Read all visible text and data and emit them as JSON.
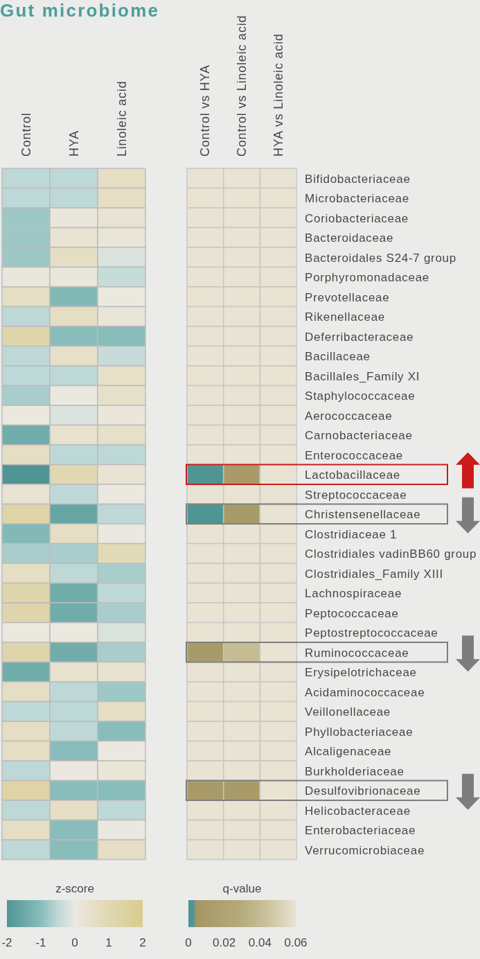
{
  "chart_data": [
    {
      "type": "heatmap",
      "title": "Gut microbiome",
      "categories": [
        "Control",
        "HYA",
        "Linoleic acid"
      ],
      "y_categories": [
        "Bifidobacteriaceae",
        "Microbacteriaceae",
        "Coriobacteriaceae",
        "Bacteroidaceae",
        "Bacteroidales S24-7 group",
        "Porphyromonadaceae",
        "Prevotellaceae",
        "Rikenellaceae",
        "Deferribacteraceae",
        "Bacillaceae",
        "Bacillales_Family XI",
        "Staphylococcaceae",
        "Aerococcaceae",
        "Carnobacteriaceae",
        "Enterococcaceae",
        "Lactobacillaceae",
        "Streptococcaceae",
        "Christensenellaceae",
        "Clostridiaceae 1",
        "Clostridiales vadinBB60 group",
        "Clostridiales_Family XIII",
        "Lachnospiraceae",
        "Peptococcaceae",
        "Peptostreptococcaceae",
        "Ruminococcaceae",
        "Erysipelotrichaceae",
        "Acidaminococcaceae",
        "Veillonellaceae",
        "Phyllobacteriaceae",
        "Alcaligenaceae",
        "Burkholderiaceae",
        "Desulfovibrionaceae",
        "Helicobacteraceae",
        "Enterobacteriaceae",
        "Verrucomicrobiaceae"
      ],
      "cells": [
        [
          -0.5,
          -0.5,
          0.6
        ],
        [
          -0.5,
          -0.5,
          0.6
        ],
        [
          -0.8,
          0.1,
          0.3
        ],
        [
          -0.8,
          0.3,
          0.2
        ],
        [
          -0.8,
          0.6,
          -0.2
        ],
        [
          0.1,
          0.1,
          -0.4
        ],
        [
          0.6,
          -1.1,
          0
        ],
        [
          -0.5,
          0.6,
          0.2
        ],
        [
          1.2,
          -1,
          -1
        ],
        [
          -0.5,
          0.5,
          -0.4
        ],
        [
          -0.5,
          -0.5,
          0.5
        ],
        [
          -0.7,
          0,
          0.5
        ],
        [
          0,
          -0.2,
          0.1
        ],
        [
          -1.4,
          0.4,
          0.5
        ],
        [
          0.6,
          -0.5,
          -0.5
        ],
        [
          -2,
          1,
          0.3
        ],
        [
          0.3,
          -0.5,
          0
        ],
        [
          1.3,
          -1.6,
          -0.5
        ],
        [
          -1.1,
          0.6,
          0
        ],
        [
          -0.7,
          -0.7,
          0.9
        ],
        [
          0.6,
          -0.5,
          -0.7
        ],
        [
          1.2,
          -1.4,
          -0.5
        ],
        [
          1.2,
          -1.4,
          -0.7
        ],
        [
          0,
          0,
          -0.2
        ],
        [
          1.2,
          -1.4,
          -0.7
        ],
        [
          -1.4,
          0.4,
          0.4
        ],
        [
          0.6,
          -0.5,
          -0.8
        ],
        [
          -0.5,
          -0.5,
          0.6
        ],
        [
          0.6,
          -0.5,
          -1
        ],
        [
          0.6,
          -1,
          0
        ],
        [
          -0.5,
          0,
          0.2
        ],
        [
          1.3,
          -1,
          -1
        ],
        [
          -0.5,
          0.6,
          -0.5
        ],
        [
          0.6,
          -1,
          0
        ],
        [
          -0.5,
          -1,
          0.6
        ]
      ],
      "clabel": "z-score",
      "clim": [
        -2,
        2
      ],
      "cticks": [
        -2,
        -1,
        0,
        1,
        2
      ],
      "tick_labels": "x"
    },
    {
      "type": "heatmap",
      "categories": [
        "Control vs HYA",
        "Control vs Linoleic acid",
        "HYA vs Linoleic acid"
      ],
      "y_categories": [
        "Bifidobacteriaceae",
        "Microbacteriaceae",
        "Coriobacteriaceae",
        "Bacteroidaceae",
        "Bacteroidales S24-7 group",
        "Porphyromonadaceae",
        "Prevotellaceae",
        "Rikenellaceae",
        "Deferribacteraceae",
        "Bacillaceae",
        "Bacillales_Family XI",
        "Staphylococcaceae",
        "Aerococcaceae",
        "Carnobacteriaceae",
        "Enterococcaceae",
        "Lactobacillaceae",
        "Streptococcaceae",
        "Christensenellaceae",
        "Clostridiaceae 1",
        "Clostridiales vadinBB60 group",
        "Clostridiales_Family XIII",
        "Lachnospiraceae",
        "Peptococcaceae",
        "Peptostreptococcaceae",
        "Ruminococcaceae",
        "Erysipelotrichaceae",
        "Acidaminococcaceae",
        "Veillonellaceae",
        "Phyllobacteriaceae",
        "Alcaligenaceae",
        "Burkholderiaceae",
        "Desulfovibrionaceae",
        "Helicobacteraceae",
        "Enterobacteriaceae",
        "Verrucomicrobiaceae"
      ],
      "cells": [
        [
          0.06,
          0.06,
          0.06
        ],
        [
          0.06,
          0.06,
          0.06
        ],
        [
          0.06,
          0.06,
          0.06
        ],
        [
          0.06,
          0.06,
          0.06
        ],
        [
          0.06,
          0.06,
          0.06
        ],
        [
          0.06,
          0.06,
          0.06
        ],
        [
          0.06,
          0.06,
          0.06
        ],
        [
          0.06,
          0.06,
          0.06
        ],
        [
          0.06,
          0.06,
          0.06
        ],
        [
          0.06,
          0.06,
          0.06
        ],
        [
          0.06,
          0.06,
          0.06
        ],
        [
          0.06,
          0.06,
          0.06
        ],
        [
          0.06,
          0.06,
          0.06
        ],
        [
          0.06,
          0.06,
          0.06
        ],
        [
          0.06,
          0.06,
          0.06
        ],
        [
          0,
          0.01,
          0.06
        ],
        [
          0.06,
          0.06,
          0.06
        ],
        [
          0,
          0.01,
          0.06
        ],
        [
          0.06,
          0.06,
          0.06
        ],
        [
          0.06,
          0.06,
          0.06
        ],
        [
          0.06,
          0.06,
          0.06
        ],
        [
          0.06,
          0.06,
          0.06
        ],
        [
          0.06,
          0.06,
          0.06
        ],
        [
          0.06,
          0.06,
          0.06
        ],
        [
          0.01,
          0.04,
          0.06
        ],
        [
          0.06,
          0.06,
          0.06
        ],
        [
          0.06,
          0.06,
          0.06
        ],
        [
          0.06,
          0.06,
          0.06
        ],
        [
          0.06,
          0.06,
          0.06
        ],
        [
          0.06,
          0.06,
          0.06
        ],
        [
          0.06,
          0.06,
          0.06
        ],
        [
          0.01,
          0.01,
          0.06
        ],
        [
          0.06,
          0.06,
          0.06
        ],
        [
          0.06,
          0.06,
          0.06
        ],
        [
          0.06,
          0.06,
          0.06
        ]
      ],
      "clabel": "q-value",
      "clim": [
        0,
        0.06
      ],
      "cticks": [
        0,
        0.02,
        0.04,
        0.06
      ]
    }
  ]
}
